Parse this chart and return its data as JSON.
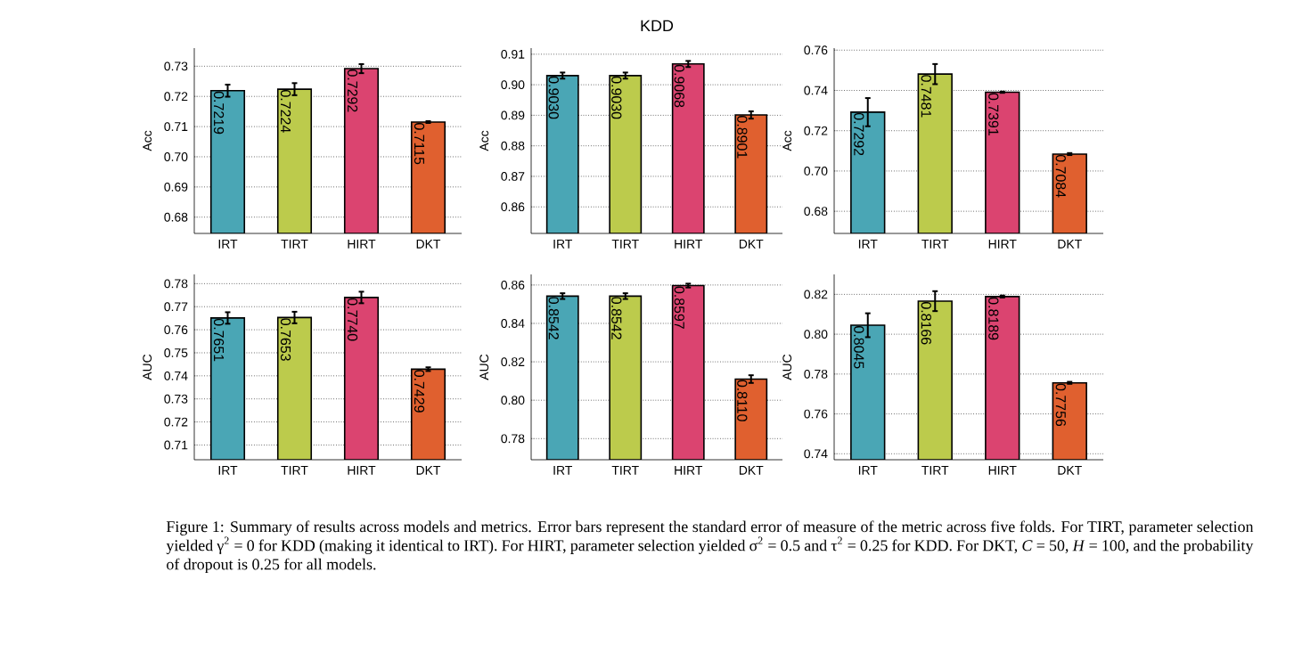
{
  "chart_data": [
    {
      "type": "bar",
      "ylabel": "Acc",
      "categories": [
        "IRT",
        "TIRT",
        "HIRT",
        "DKT"
      ],
      "values": [
        0.7219,
        0.7224,
        0.7292,
        0.7115
      ],
      "colors": [
        "#4aa6b5",
        "#bccb4c",
        "#db4470",
        "#e0602f"
      ],
      "errors": [
        0.002,
        0.002,
        0.0015,
        0.0003
      ],
      "value_labels": [
        "0.7219",
        "0.7224",
        "0.7292",
        "0.7115"
      ],
      "ylim": [
        0.6746,
        0.736
      ],
      "yticks": [
        0.68,
        0.69,
        {
          "value": 0.7,
          "label": "0.70"
        },
        0.71,
        0.72,
        0.73
      ],
      "grid": "y"
    },
    {
      "type": "bar",
      "title": "KDD",
      "ylabel": "Acc",
      "categories": [
        "IRT",
        "TIRT",
        "HIRT",
        "DKT"
      ],
      "values": [
        0.903,
        0.903,
        0.9068,
        0.8901
      ],
      "colors": [
        "#4aa6b5",
        "#bccb4c",
        "#db4470",
        "#e0602f"
      ],
      "errors": [
        0.001,
        0.001,
        0.001,
        0.0012
      ],
      "value_labels": [
        "0.9030",
        "0.9030",
        "0.9068",
        "0.8901"
      ],
      "ylim": [
        0.8513,
        0.912
      ],
      "yticks": [
        0.86,
        0.87,
        0.88,
        0.89,
        {
          "value": 0.9,
          "label": "0.90"
        },
        0.91
      ],
      "grid": "y"
    },
    {
      "type": "bar",
      "ylabel": "Acc",
      "categories": [
        "IRT",
        "TIRT",
        "HIRT",
        "DKT"
      ],
      "values": [
        0.7292,
        0.7481,
        0.7391,
        0.7084
      ],
      "colors": [
        "#4aa6b5",
        "#bccb4c",
        "#db4470",
        "#e0602f"
      ],
      "errors": [
        0.007,
        0.005,
        0.0003,
        0.0005
      ],
      "value_labels": [
        "0.7292",
        "0.7481",
        "0.7391",
        "0.7084"
      ],
      "ylim": [
        0.669,
        0.761
      ],
      "yticks": [
        0.68,
        {
          "value": 0.7,
          "label": "0.70"
        },
        0.72,
        0.74,
        0.76
      ],
      "grid": "y"
    },
    {
      "type": "bar",
      "ylabel": "AUC",
      "categories": [
        "IRT",
        "TIRT",
        "HIRT",
        "DKT"
      ],
      "values": [
        0.7651,
        0.7653,
        0.774,
        0.7429
      ],
      "colors": [
        "#4aa6b5",
        "#bccb4c",
        "#db4470",
        "#e0602f"
      ],
      "errors": [
        0.0025,
        0.0025,
        0.0025,
        0.0008
      ],
      "value_labels": [
        "0.7651",
        "0.7653",
        "0.7740",
        "0.7429"
      ],
      "ylim": [
        0.7036,
        0.784
      ],
      "yticks": [
        0.71,
        0.72,
        0.73,
        0.74,
        0.75,
        0.76,
        0.77,
        0.78
      ],
      "grid": "y"
    },
    {
      "type": "bar",
      "ylabel": "AUC",
      "categories": [
        "IRT",
        "TIRT",
        "HIRT",
        "DKT"
      ],
      "values": [
        0.8542,
        0.8542,
        0.8597,
        0.811
      ],
      "colors": [
        "#4aa6b5",
        "#bccb4c",
        "#db4470",
        "#e0602f"
      ],
      "errors": [
        0.0015,
        0.0015,
        0.001,
        0.002
      ],
      "value_labels": [
        "0.8542",
        "0.8542",
        "0.8597",
        "0.8110"
      ],
      "ylim": [
        0.769,
        0.8655
      ],
      "yticks": [
        0.78,
        {
          "value": 0.8,
          "label": "0.80"
        },
        0.82,
        0.84,
        0.86
      ],
      "grid": "y"
    },
    {
      "type": "bar",
      "ylabel": "AUC",
      "categories": [
        "IRT",
        "TIRT",
        "HIRT",
        "DKT"
      ],
      "values": [
        0.8045,
        0.8166,
        0.8189,
        0.7756
      ],
      "colors": [
        "#4aa6b5",
        "#bccb4c",
        "#db4470",
        "#e0602f"
      ],
      "errors": [
        0.006,
        0.005,
        0.0005,
        0.0005
      ],
      "value_labels": [
        "0.8045",
        "0.8166",
        "0.8189",
        "0.7756"
      ],
      "ylim": [
        0.737,
        0.83
      ],
      "yticks": [
        0.74,
        0.76,
        0.78,
        {
          "value": 0.8,
          "label": "0.80"
        },
        0.82
      ],
      "grid": "y",
      "annotations": [
        "Figure 1: Summary of results across models and metrics. Error bars represent the standard error of measure of the metric across five folds. For TIRT, parameter selection yielded γ$^{2}$ = 0 for KDD (making it identical to IRT). For HIRT, parameter selection yielded σ$^{2}$ = 0.5 and τ$^{2}$ = 0.25 for KDD. For DKT, *C* = 50, *H* = 100, and the probability of dropout is 0.25 for all models."
      ]
    }
  ]
}
